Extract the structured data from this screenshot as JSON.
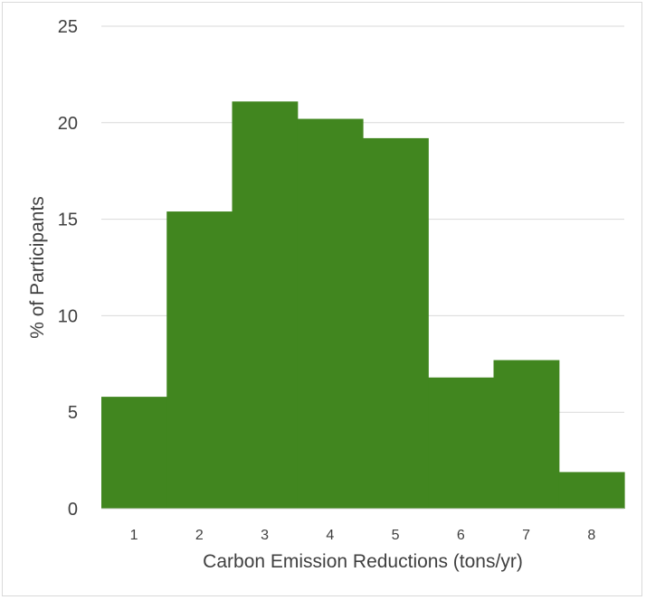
{
  "chart_data": {
    "type": "bar",
    "categories": [
      "1",
      "2",
      "3",
      "4",
      "5",
      "6",
      "7",
      "8"
    ],
    "values": [
      5.8,
      15.4,
      21.1,
      20.2,
      19.2,
      6.8,
      7.7,
      1.9
    ],
    "xlabel": "Carbon Emission Reductions (tons/yr)",
    "ylabel": "% of Participants",
    "ylim": [
      0,
      25
    ],
    "yticks": [
      "0",
      "5",
      "10",
      "15",
      "20",
      "25"
    ],
    "grid": true,
    "bar_color": "#41861f",
    "gap_width": 0
  }
}
